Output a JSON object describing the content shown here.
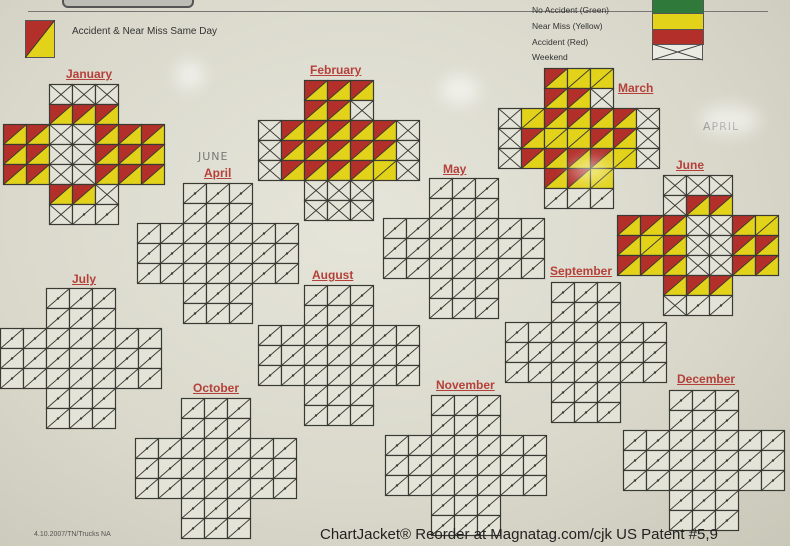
{
  "legend": {
    "combo_label": "Accident & Near Miss Same Day",
    "items": [
      {
        "label": "No Accident (Green)",
        "color": "#2f7a3a"
      },
      {
        "label": "Near Miss (Yellow)",
        "color": "#e2d21a"
      },
      {
        "label": "Accident (Red)",
        "color": "#b3302a"
      },
      {
        "label": "Weekend",
        "color": "#e8e8e0"
      }
    ]
  },
  "colors": {
    "red": "#b3302a",
    "yellow": "#e2d21a",
    "green": "#2f7a3a",
    "line": "#3a3a34",
    "label": "#b5403a"
  },
  "cell_codes": {
    "S": "accident-and-near-miss",
    "Y": "near-miss",
    "R": "accident",
    "G": "no-accident",
    "X": "weekend",
    ".": "unmarked"
  },
  "months": [
    {
      "name": "January",
      "rows": [
        "XXX",
        "SSS",
        "SSXXSSS",
        "SSXXSSS",
        "SSXXSSS",
        "SSX",
        "X.."
      ]
    },
    {
      "name": "February",
      "rows": [
        "SSS",
        "SSX",
        "XSSSSSX",
        "XSSSSSX",
        "XSSSSYX",
        "XXX",
        "XXX"
      ]
    },
    {
      "name": "March",
      "rows": [
        "SYY",
        "SSX",
        "XYSSSSX",
        "XSYYSSX",
        "XSSSSYX",
        "SSY",
        "..."
      ]
    },
    {
      "name": "April",
      "rows": [
        "...",
        "...",
        ".......",
        ".......",
        ".......",
        "...",
        "..."
      ]
    },
    {
      "name": "May",
      "rows": [
        "...",
        "...",
        ".......",
        ".......",
        ".......",
        "...",
        "..."
      ]
    },
    {
      "name": "June",
      "rows": [
        "XXX",
        "XSS",
        "SSSXXSY",
        "SYSXXSS",
        "SSSXXSS",
        "SSS",
        "X.."
      ]
    },
    {
      "name": "July",
      "rows": [
        "...",
        "...",
        ".......",
        ".......",
        ".......",
        "...",
        "..."
      ]
    },
    {
      "name": "August",
      "rows": [
        "...",
        "...",
        ".......",
        ".......",
        ".......",
        "...",
        "..."
      ]
    },
    {
      "name": "September",
      "rows": [
        "...",
        "...",
        ".......",
        ".......",
        ".......",
        "...",
        "..."
      ]
    },
    {
      "name": "October",
      "rows": [
        "...",
        "...",
        ".......",
        ".......",
        ".......",
        "...",
        "..."
      ]
    },
    {
      "name": "November",
      "rows": [
        "...",
        "...",
        ".......",
        ".......",
        ".......",
        "...",
        "..."
      ]
    },
    {
      "name": "December",
      "rows": [
        "...",
        "...",
        ".......",
        ".......",
        ".......",
        "...",
        "..."
      ]
    }
  ],
  "handwriting": {
    "over_april": "JUNE",
    "near_june": "APRIL"
  },
  "footer": {
    "code": "4.10.2007/TN/Trucks NA",
    "brand": "ChartJacket® Reorder at Magnatag.com/cjk  US Patent #5,9"
  }
}
